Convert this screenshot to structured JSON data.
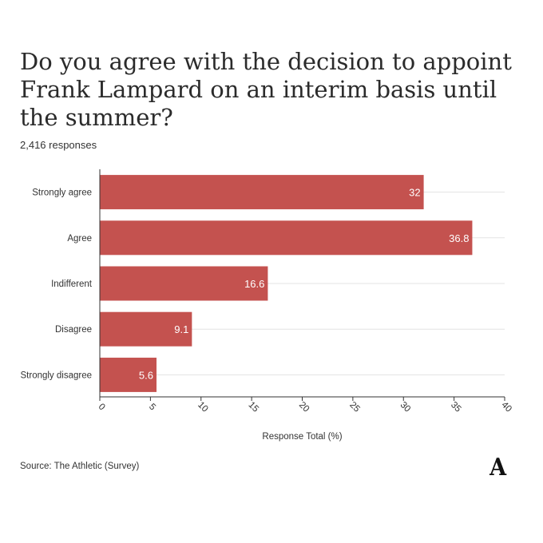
{
  "header": {
    "title": "Do you agree with the decision to appoint Frank Lampard on an interim basis until the summer?",
    "subtitle": "2,416 responses"
  },
  "footer": {
    "source": "Source: The Athletic (Survey)",
    "logo": "A"
  },
  "colors": {
    "bar": "#c4524f",
    "grid": "#e3e3e3",
    "axis": "#333333",
    "text": "#333333"
  },
  "chart_data": {
    "type": "bar",
    "orientation": "horizontal",
    "title": "Do you agree with the decision to appoint Frank Lampard on an interim basis until the summer?",
    "subtitle": "2,416 responses",
    "categories": [
      "Strongly agree",
      "Agree",
      "Indifferent",
      "Disagree",
      "Strongly disagree"
    ],
    "values": [
      32,
      36.8,
      16.6,
      9.1,
      5.6
    ],
    "data_labels": [
      "32",
      "36.8",
      "16.6",
      "9.1",
      "5.6"
    ],
    "xlabel": "Response Total (%)",
    "ylabel": "",
    "xlim": [
      0,
      40
    ],
    "xticks": [
      0,
      5,
      10,
      15,
      20,
      25,
      30,
      35,
      40
    ],
    "grid": true,
    "legend": "none"
  }
}
